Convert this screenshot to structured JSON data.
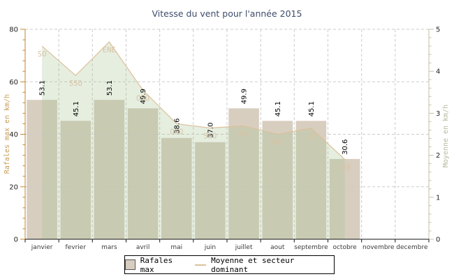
{
  "chart": {
    "title": "Vitesse du vent pour l'année 2015",
    "y_left_label": "Rafales max en km/h",
    "y_right_label": "Moyenne en km/h"
  },
  "legend": {
    "rafales": "Rafales max",
    "moyenne": "Moyenne et secteur dominant"
  },
  "colors": {
    "title": "#3e4c6b",
    "bar": "#d8cec0",
    "area_fill": "rgba(163,191,140,0.27)",
    "area_line": "#dcc19a",
    "sector_label": "#d6c4a4",
    "grid": "#cbcbcb",
    "axis_left": "#c0862f",
    "axis_left_label": "#c79a55",
    "axis_right": "#c6c0a4",
    "axis_right_label": "#b2ba9a",
    "axis_bottom": "#111111",
    "tick_text": "#222222",
    "month_text": "#3a3a3a",
    "value_text": "#000000"
  },
  "chart_data": {
    "type": "bar",
    "title": "Vitesse du vent pour l'année 2015",
    "categories": [
      "janvier",
      "fevrier",
      "mars",
      "avril",
      "mai",
      "juin",
      "juillet",
      "aout",
      "septembre",
      "octobre",
      "novembre",
      "decembre"
    ],
    "series": [
      {
        "name": "Rafales max",
        "type": "bar",
        "axis": "left",
        "values": [
          53.1,
          45.1,
          53.1,
          49.9,
          38.6,
          37.0,
          49.9,
          45.1,
          45.1,
          30.6,
          null,
          null
        ]
      },
      {
        "name": "Moyenne et secteur dominant",
        "type": "area",
        "axis": "right",
        "values": [
          4.6,
          3.9,
          4.7,
          3.55,
          2.75,
          2.65,
          2.7,
          2.5,
          2.65,
          1.9,
          null,
          null
        ]
      }
    ],
    "sectors": [
      "SO",
      "SSO",
      "ENE",
      "OSO",
      "OSO",
      "SSO",
      "OSO",
      "OSO",
      "SO",
      "ESE",
      null,
      null
    ],
    "y_left": {
      "min": 0,
      "max": 80,
      "major": 20,
      "minor": 4,
      "label": "Rafales max en km/h"
    },
    "y_right": {
      "min": 0,
      "max": 5,
      "major": 1,
      "minor": 0.2,
      "label": "Moyenne en km/h"
    },
    "grid": "dashed",
    "legend_position": "bottom"
  }
}
